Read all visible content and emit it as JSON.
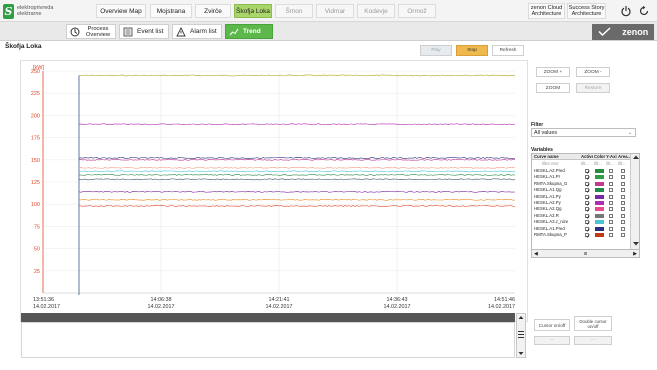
{
  "brand": {
    "line1": "elektroprivreda",
    "line2": "elektrarne",
    "mark": "S"
  },
  "nav": {
    "tabs": [
      "Overview Map",
      "Mojstrana",
      "Zvirče",
      "Škofja Loka",
      "Šmon",
      "Vidmar",
      "Kodevje",
      "Ormož"
    ],
    "active_index": 3,
    "cloud": [
      "zenon Cloud",
      "Architecture"
    ],
    "story": [
      "Success Story",
      "Architecture"
    ]
  },
  "subnav": {
    "tabs": [
      "Process Overview",
      "Event list",
      "Alarm list",
      "Trend"
    ],
    "active_index": 3
  },
  "zenon_label": "zenon",
  "page_title": "Škofja Loka",
  "toolbar": {
    "play": "Play",
    "stop": "Stop",
    "refresh": "Refresh"
  },
  "colors": {
    "active_tab": "#a9d66b",
    "trend_tab": "#5cb84a",
    "stop_btn": "#f0b94d"
  },
  "chart_data": {
    "type": "line",
    "y_unit": "[kW]",
    "ylim": [
      0,
      250
    ],
    "yticks": [
      25,
      50,
      75,
      100,
      125,
      150,
      175,
      200,
      225,
      250
    ],
    "x_start": "13:51:36",
    "xticks": [
      {
        "time": "13:51:36",
        "date": "14.02.2017"
      },
      {
        "time": "14:06:38",
        "date": "14.02.2017"
      },
      {
        "time": "14:21:41",
        "date": "14.02.2017"
      },
      {
        "time": "14:36:43",
        "date": "14.02.2017"
      },
      {
        "time": "14:51:46",
        "date": "14.02.2017"
      }
    ],
    "series": [
      {
        "value": 245,
        "color": "#b8a21a"
      },
      {
        "value": 190,
        "color": "#b02cb0"
      },
      {
        "value": 152,
        "color": "#2b2f80"
      },
      {
        "value": 150,
        "color": "#c03a8e"
      },
      {
        "value": 141,
        "color": "#f29a8a"
      },
      {
        "value": 137,
        "color": "#4cc4d8"
      },
      {
        "value": 133,
        "color": "#2a8a4a"
      },
      {
        "value": 128,
        "color": "#3c5a6a"
      },
      {
        "value": 114,
        "color": "#7a2aa0"
      },
      {
        "value": 105,
        "color": "#e88a20"
      },
      {
        "value": 98,
        "color": "#e04a2a"
      }
    ]
  },
  "zoom": {
    "zoom_in": "ZOOM +",
    "zoom_out": "ZOOM -",
    "zoom": "ZOOM",
    "restore": "Restore"
  },
  "filter": {
    "label": "Filter",
    "value": "All values"
  },
  "variables": {
    "label": "Variables",
    "headers": [
      "Curve name",
      "Active",
      "Color",
      "Y-Axis",
      "Area..."
    ],
    "filter_row": [
      "filter text",
      "filt...",
      "filt...",
      "filt...",
      "filt..."
    ],
    "rows": [
      {
        "name": "HESKL.A2.Pred",
        "color": "#2b8a3e"
      },
      {
        "name": "HESKL.A1.Pr",
        "color": "#2e9e47"
      },
      {
        "name": "RMTA.Skupna_G",
        "color": "#c03a8e"
      },
      {
        "name": "HESKL.A1.Qg",
        "color": "#1f8a4a"
      },
      {
        "name": "HESKL.A1.Py",
        "color": "#7a2aa0"
      },
      {
        "name": "HESKL.A2.Py",
        "color": "#b02cb0"
      },
      {
        "name": "HESKL.A2.Qg",
        "color": "#e84a8a"
      },
      {
        "name": "HESKL.A2.R",
        "color": "#777777"
      },
      {
        "name": "HESKL.A3.z_nize",
        "color": "#4cc4d8"
      },
      {
        "name": "HESKL.A1.Pred",
        "color": "#2b2f80"
      },
      {
        "name": "RMTA.Skupna_P",
        "color": "#c03a1a"
      }
    ],
    "hscroll_mid": "III"
  },
  "cursor": {
    "cursor_on_off": "Cursor on/off",
    "double_cursor": [
      "Double cursor",
      "on/off"
    ],
    "btn1": "---",
    "btn2": "---"
  }
}
